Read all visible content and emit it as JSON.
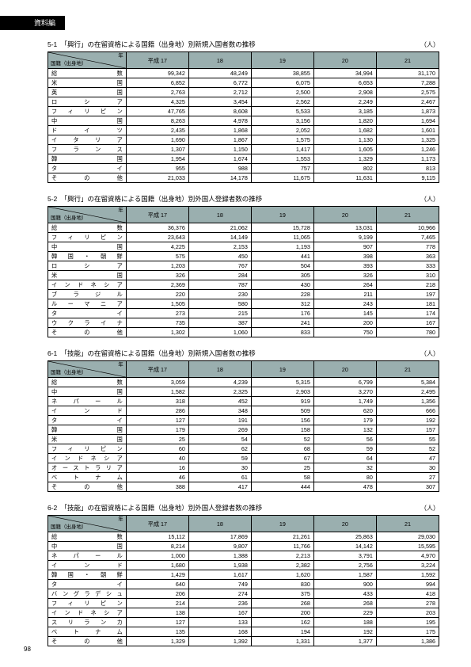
{
  "header_label": "資料編",
  "unit_label": "（人）",
  "page_number": "98",
  "year_labels": [
    "平成 17",
    "18",
    "19",
    "20",
    "21"
  ],
  "corner_top": "年",
  "corner_bottom": "国籍（出身地）",
  "tables": [
    {
      "title": "5-1　「興行」の在留資格による国籍（出身地）別新規入国者数の推移",
      "rows": [
        {
          "label": "総数",
          "v": [
            "99,342",
            "48,249",
            "38,855",
            "34,994",
            "31,170"
          ]
        },
        {
          "label": "米国",
          "v": [
            "6,852",
            "6,772",
            "6,075",
            "6,653",
            "7,288"
          ]
        },
        {
          "label": "英国",
          "v": [
            "2,763",
            "2,712",
            "2,500",
            "2,908",
            "2,575"
          ]
        },
        {
          "label": "ロシア",
          "v": [
            "4,325",
            "3,454",
            "2,562",
            "2,249",
            "2,467"
          ]
        },
        {
          "label": "フィリピン",
          "v": [
            "47,765",
            "8,608",
            "5,533",
            "3,185",
            "1,873"
          ]
        },
        {
          "label": "中国",
          "v": [
            "8,263",
            "4,978",
            "3,156",
            "1,820",
            "1,694"
          ]
        },
        {
          "label": "ドイツ",
          "v": [
            "2,435",
            "1,868",
            "2,052",
            "1,682",
            "1,601"
          ]
        },
        {
          "label": "イタリア",
          "v": [
            "1,690",
            "1,867",
            "1,575",
            "1,130",
            "1,325"
          ]
        },
        {
          "label": "フランス",
          "v": [
            "1,307",
            "1,150",
            "1,417",
            "1,605",
            "1,246"
          ]
        },
        {
          "label": "韓国",
          "v": [
            "1,954",
            "1,674",
            "1,553",
            "1,329",
            "1,173"
          ]
        },
        {
          "label": "タイ",
          "v": [
            "955",
            "988",
            "757",
            "802",
            "813"
          ]
        },
        {
          "label": "その他",
          "v": [
            "21,033",
            "14,178",
            "11,675",
            "11,631",
            "9,115"
          ]
        }
      ]
    },
    {
      "title": "5-2　「興行」の在留資格による国籍（出身地）別外国人登録者数の推移",
      "rows": [
        {
          "label": "総数",
          "v": [
            "36,376",
            "21,062",
            "15,728",
            "13,031",
            "10,966"
          ]
        },
        {
          "label": "フィリピン",
          "v": [
            "23,643",
            "14,149",
            "11,065",
            "9,199",
            "7,465"
          ]
        },
        {
          "label": "中国",
          "v": [
            "4,225",
            "2,153",
            "1,193",
            "907",
            "778"
          ]
        },
        {
          "label": "韓国・朝鮮",
          "v": [
            "575",
            "450",
            "441",
            "398",
            "363"
          ]
        },
        {
          "label": "ロシア",
          "v": [
            "1,203",
            "767",
            "504",
            "393",
            "333"
          ]
        },
        {
          "label": "米国",
          "v": [
            "326",
            "284",
            "305",
            "326",
            "310"
          ]
        },
        {
          "label": "インドネシア",
          "v": [
            "2,369",
            "787",
            "430",
            "264",
            "218"
          ]
        },
        {
          "label": "ブラジル",
          "v": [
            "220",
            "230",
            "228",
            "211",
            "197"
          ]
        },
        {
          "label": "ルーマニア",
          "v": [
            "1,505",
            "580",
            "312",
            "243",
            "181"
          ]
        },
        {
          "label": "タイ",
          "v": [
            "273",
            "215",
            "176",
            "145",
            "174"
          ]
        },
        {
          "label": "ウクライナ",
          "v": [
            "735",
            "387",
            "241",
            "200",
            "167"
          ]
        },
        {
          "label": "その他",
          "v": [
            "1,302",
            "1,060",
            "833",
            "750",
            "780"
          ]
        }
      ]
    },
    {
      "title": "6-1　「技能」の在留資格による国籍（出身地）別新規入国者数の推移",
      "rows": [
        {
          "label": "総数",
          "v": [
            "3,059",
            "4,239",
            "5,315",
            "6,799",
            "5,384"
          ]
        },
        {
          "label": "中国",
          "v": [
            "1,582",
            "2,325",
            "2,903",
            "3,270",
            "2,495"
          ]
        },
        {
          "label": "ネパール",
          "v": [
            "318",
            "452",
            "919",
            "1,749",
            "1,356"
          ]
        },
        {
          "label": "インド",
          "v": [
            "286",
            "348",
            "509",
            "620",
            "666"
          ]
        },
        {
          "label": "タイ",
          "v": [
            "127",
            "191",
            "156",
            "179",
            "192"
          ]
        },
        {
          "label": "韓国",
          "v": [
            "179",
            "269",
            "158",
            "132",
            "157"
          ]
        },
        {
          "label": "米国",
          "v": [
            "25",
            "54",
            "52",
            "56",
            "55"
          ]
        },
        {
          "label": "フィリピン",
          "v": [
            "60",
            "62",
            "68",
            "59",
            "52"
          ]
        },
        {
          "label": "インドネシア",
          "v": [
            "40",
            "59",
            "67",
            "64",
            "47"
          ]
        },
        {
          "label": "オーストラリア",
          "v": [
            "16",
            "30",
            "25",
            "32",
            "30"
          ]
        },
        {
          "label": "ベトナム",
          "v": [
            "46",
            "61",
            "58",
            "80",
            "27"
          ]
        },
        {
          "label": "その他",
          "v": [
            "388",
            "417",
            "444",
            "478",
            "307"
          ]
        }
      ]
    },
    {
      "title": "6-2　「技能」の在留資格による国籍（出身地）別外国人登録者数の推移",
      "rows": [
        {
          "label": "総数",
          "v": [
            "15,112",
            "17,869",
            "21,261",
            "25,863",
            "29,030"
          ]
        },
        {
          "label": "中国",
          "v": [
            "8,214",
            "9,807",
            "11,766",
            "14,142",
            "15,595"
          ]
        },
        {
          "label": "ネパール",
          "v": [
            "1,000",
            "1,388",
            "2,213",
            "3,791",
            "4,970"
          ]
        },
        {
          "label": "インド",
          "v": [
            "1,680",
            "1,938",
            "2,382",
            "2,756",
            "3,224"
          ]
        },
        {
          "label": "韓国・朝鮮",
          "v": [
            "1,429",
            "1,617",
            "1,620",
            "1,587",
            "1,592"
          ]
        },
        {
          "label": "タイ",
          "v": [
            "640",
            "749",
            "830",
            "900",
            "994"
          ]
        },
        {
          "label": "バングラデシュ",
          "v": [
            "206",
            "274",
            "375",
            "433",
            "418"
          ]
        },
        {
          "label": "フィリピン",
          "v": [
            "214",
            "236",
            "268",
            "268",
            "278"
          ]
        },
        {
          "label": "インドネシア",
          "v": [
            "138",
            "167",
            "200",
            "229",
            "203"
          ]
        },
        {
          "label": "スリランカ",
          "v": [
            "127",
            "133",
            "162",
            "188",
            "195"
          ]
        },
        {
          "label": "ベトナム",
          "v": [
            "135",
            "168",
            "194",
            "192",
            "175"
          ]
        },
        {
          "label": "その他",
          "v": [
            "1,329",
            "1,392",
            "1,331",
            "1,377",
            "1,386"
          ]
        }
      ]
    }
  ]
}
